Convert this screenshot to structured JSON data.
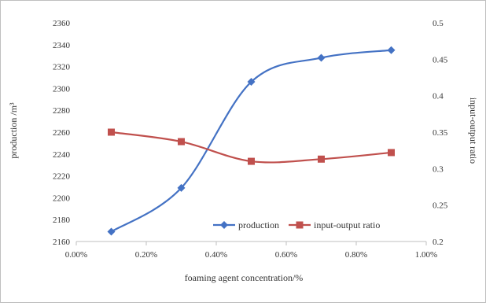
{
  "chart_data": {
    "type": "line",
    "title": "",
    "xlabel": "foaming agent concentration/%",
    "ylabel": "production /m³",
    "y2label": "input-output ratio",
    "x": [
      0.001,
      0.003,
      0.005,
      0.007,
      0.009
    ],
    "xlim": [
      0.0,
      0.01
    ],
    "xticks": [
      0.0,
      0.002,
      0.004,
      0.006,
      0.008,
      0.01
    ],
    "xtick_labels": [
      "0.00%",
      "0.20%",
      "0.40%",
      "0.60%",
      "0.80%",
      "1.00%"
    ],
    "ylim": [
      2160,
      2360
    ],
    "yticks": [
      2160,
      2180,
      2200,
      2220,
      2240,
      2260,
      2280,
      2300,
      2320,
      2340,
      2360
    ],
    "y2lim": [
      0.2,
      0.5
    ],
    "y2ticks": [
      0.2,
      0.25,
      0.3,
      0.35,
      0.4,
      0.45,
      0.5
    ],
    "grid": false,
    "legend_position": "bottom-right inside plot",
    "series": [
      {
        "name": "production",
        "axis": "left",
        "color": "#4472C4",
        "marker": "diamond",
        "smooth": true,
        "values": [
          2169,
          2209,
          2306,
          2328,
          2335
        ]
      },
      {
        "name": "input-output ratio",
        "axis": "right",
        "color": "#C0504D",
        "marker": "square",
        "smooth": true,
        "values": [
          0.35,
          0.337,
          0.31,
          0.313,
          0.322
        ]
      }
    ]
  }
}
